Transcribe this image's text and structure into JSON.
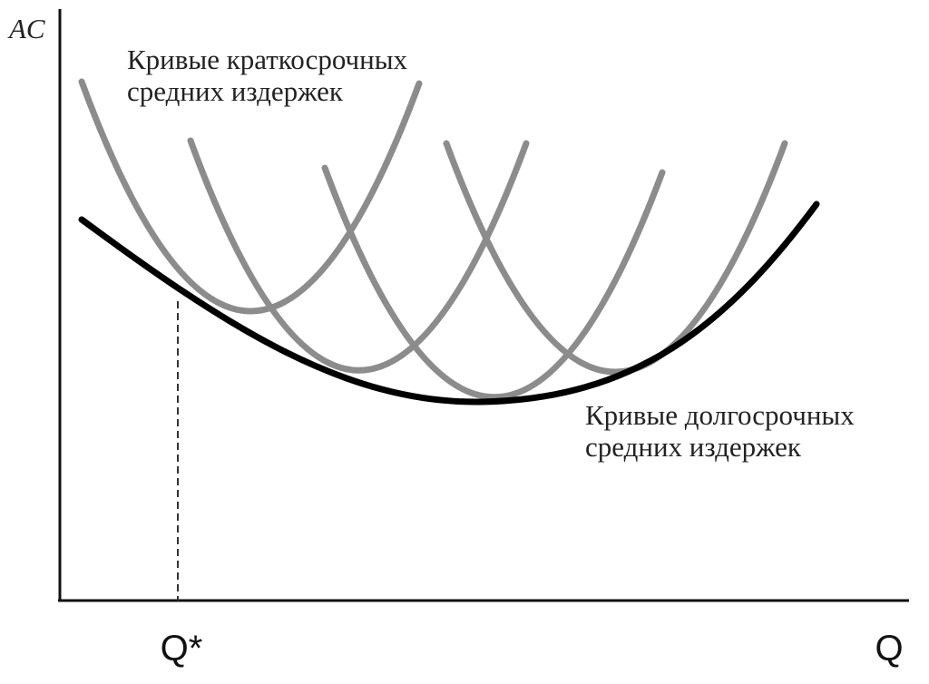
{
  "y_axis_label": "AC",
  "x_axis_label": "Q",
  "x_marker_label": "Q*",
  "short_run_label": [
    "Кривые краткосрочных",
    "средних издержек"
  ],
  "long_run_label": [
    "Кривые долгосрочных",
    "средних издержек"
  ]
}
